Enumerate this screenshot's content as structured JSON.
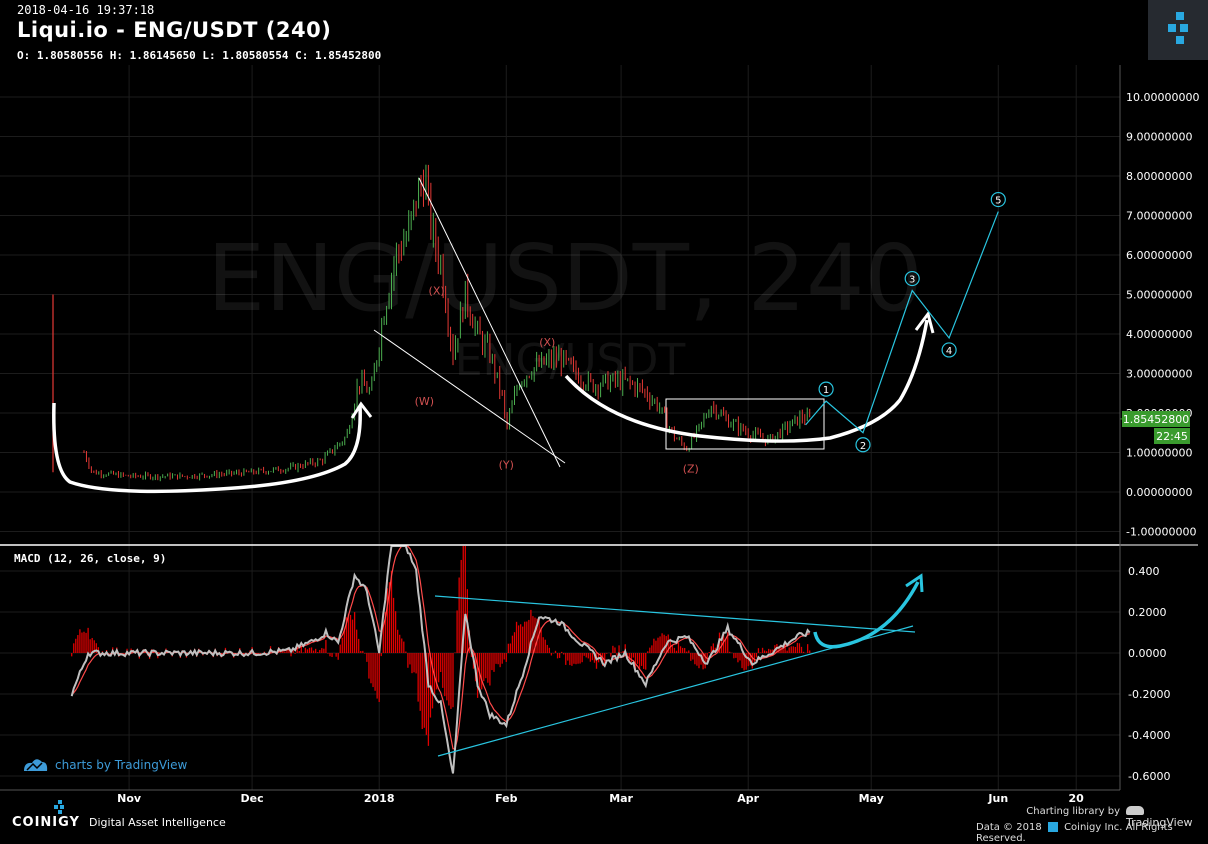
{
  "header": {
    "timestamp": "2018-04-16 19:37:18",
    "title": "Liqui.io - ENG/USDT (240)",
    "ohlc": "O: 1.80580556 H: 1.86145650 L: 1.80580554 C: 1.85452800"
  },
  "watermark": {
    "main": "ENG/USDT, 240",
    "sub": "ENG/USDT"
  },
  "price_badge": {
    "value": "1.85452800",
    "countdown": "22:45"
  },
  "macd_label": "MACD (12, 26, close, 9)",
  "tradingview_text": "charts by TradingView",
  "footer": {
    "brand": "COINIGY",
    "tagline": "Digital Asset Intelligence",
    "charting_by": "Charting library by",
    "tv": "TradingView",
    "copyright": "Data © 2018",
    "company": "Coinigy Inc. All Rights Reserved."
  },
  "colors": {
    "background": "#000000",
    "candle_up": "#4caf50",
    "candle_down": "#e53935",
    "price_badge": "#3a9b2e",
    "macd_line": "#c0c0c0",
    "signal_line": "#ff4a4a",
    "histogram": "#e00000",
    "projection": "#29c5e0",
    "curves": "#ffffff"
  },
  "chart_data": {
    "type": "line",
    "xaxis_ticks": [
      "Nov",
      "Dec",
      "2018",
      "Feb",
      "Mar",
      "Apr",
      "May",
      "Jun",
      "20"
    ],
    "price_axis": {
      "ticks": [
        "10.00000000",
        "9.00000000",
        "8.00000000",
        "7.00000000",
        "6.00000000",
        "5.00000000",
        "4.00000000",
        "3.00000000",
        "2.00000000",
        "1.00000000",
        "0.00000000",
        "-1.00000000"
      ],
      "ylim": [
        -1,
        10
      ]
    },
    "macd_axis": {
      "ticks": [
        "0.400",
        "0.2000",
        "0.0000",
        "-0.2000",
        "-0.4000",
        "-0.6000"
      ],
      "ylim": [
        -0.6,
        0.4
      ]
    },
    "price_series": {
      "name": "ENG/USDT",
      "x": [
        "2017-10-21",
        "2017-10-23",
        "2017-11-01",
        "2017-11-15",
        "2017-12-01",
        "2017-12-10",
        "2017-12-18",
        "2017-12-24",
        "2017-12-27",
        "2017-12-30",
        "2018-01-02",
        "2018-01-05",
        "2018-01-08",
        "2018-01-10",
        "2018-01-12",
        "2018-01-14",
        "2018-01-16",
        "2018-01-19",
        "2018-01-22",
        "2018-01-25",
        "2018-01-28",
        "2018-01-31",
        "2018-02-01",
        "2018-02-04",
        "2018-02-07",
        "2018-02-11",
        "2018-02-14",
        "2018-02-18",
        "2018-02-22",
        "2018-02-26",
        "2018-03-02",
        "2018-03-06",
        "2018-03-10",
        "2018-03-14",
        "2018-03-17",
        "2018-03-20",
        "2018-03-23",
        "2018-03-27",
        "2018-04-01",
        "2018-04-06",
        "2018-04-10",
        "2018-04-14",
        "2018-04-16"
      ],
      "y": [
        1.0,
        0.5,
        0.4,
        0.4,
        0.5,
        0.6,
        0.8,
        1.4,
        2.8,
        2.5,
        4.5,
        6.0,
        6.5,
        7.4,
        8.0,
        6.5,
        5.8,
        3.5,
        5.0,
        4.0,
        3.5,
        2.4,
        1.6,
        2.8,
        3.1,
        3.3,
        3.4,
        3.0,
        2.7,
        2.8,
        2.8,
        2.6,
        2.2,
        1.4,
        1.1,
        1.6,
        2.2,
        1.8,
        1.5,
        1.3,
        1.6,
        1.9,
        1.85
      ]
    },
    "wave_labels": [
      {
        "label": "(W)",
        "x": "2018-01-12",
        "y": 2.2
      },
      {
        "label": "(X)",
        "x": "2018-01-15",
        "y": 5.0
      },
      {
        "label": "(Y)",
        "x": "2018-02-01",
        "y": 0.6
      },
      {
        "label": "(X)",
        "x": "2018-02-11",
        "y": 3.7
      },
      {
        "label": "(Z)",
        "x": "2018-03-18",
        "y": 0.5
      }
    ],
    "projection": {
      "x": [
        "2018-04-15",
        "2018-04-20",
        "2018-04-29",
        "2018-05-11",
        "2018-05-20",
        "2018-06-01"
      ],
      "y": [
        1.7,
        2.3,
        1.5,
        5.1,
        3.9,
        7.1
      ],
      "labels": [
        "1",
        "2",
        "3",
        "4",
        "5"
      ]
    },
    "macd_series": {
      "name": "MACD",
      "x": [
        "2017-10-18",
        "2017-10-22",
        "2017-11-01",
        "2017-11-15",
        "2017-12-01",
        "2017-12-10",
        "2017-12-16",
        "2017-12-19",
        "2017-12-22",
        "2017-12-26",
        "2017-12-29",
        "2018-01-01",
        "2018-01-04",
        "2018-01-07",
        "2018-01-10",
        "2018-01-13",
        "2018-01-16",
        "2018-01-19",
        "2018-01-22",
        "2018-01-25",
        "2018-01-28",
        "2018-02-01",
        "2018-02-05",
        "2018-02-09",
        "2018-02-14",
        "2018-02-19",
        "2018-02-25",
        "2018-03-02",
        "2018-03-07",
        "2018-03-12",
        "2018-03-17",
        "2018-03-22",
        "2018-03-27",
        "2018-04-02",
        "2018-04-08",
        "2018-04-13",
        "2018-04-16"
      ],
      "y": [
        -0.2,
        0.0,
        0.0,
        0.0,
        0.0,
        0.01,
        0.06,
        0.1,
        0.05,
        0.38,
        0.3,
        0.0,
        0.55,
        0.55,
        0.4,
        -0.15,
        -0.25,
        -0.6,
        0.2,
        -0.15,
        -0.3,
        -0.35,
        -0.1,
        0.18,
        0.15,
        0.05,
        -0.05,
        0.0,
        -0.15,
        0.05,
        0.08,
        -0.05,
        0.12,
        -0.05,
        0.02,
        0.08,
        0.1
      ]
    }
  }
}
